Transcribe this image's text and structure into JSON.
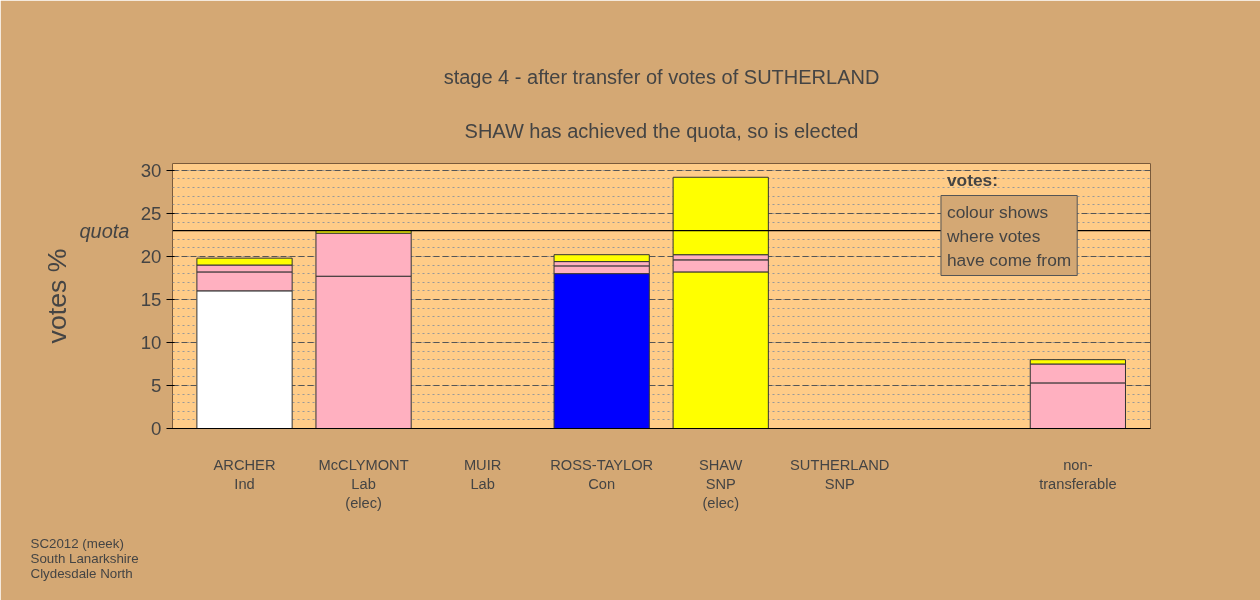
{
  "chart_data": {
    "type": "bar",
    "stacked": true,
    "title": "stage 4 - after transfer of votes of SUTHERLAND",
    "subtitle": "SHAW has achieved the quota, so is elected",
    "ylabel": "votes %",
    "categories": [
      "ARCHER\nInd",
      "McCLYMONT\nLab\n(elec)",
      "MUIR\nLab",
      "ROSS-TAYLOR\nCon",
      "SHAW\nSNP\n(elec)",
      "SUTHERLAND\nSNP",
      null,
      "non-\ntransferable"
    ],
    "series": [
      {
        "colors": [
          "#ffffff",
          "#ffb0c0",
          "#ff0000",
          "#0000ff",
          "#ffff00",
          "#ffff00",
          "#ffffff",
          "#ffb0c0"
        ],
        "values": [
          16.0,
          17.7,
          null,
          18.0,
          18.2,
          null,
          null,
          5.3
        ]
      },
      {
        "colors": [
          "#ffb0c0",
          "#ffb0c0",
          "#ffb0c0",
          "#ffb0c0",
          "#ffb0c0",
          "#ffb0c0",
          "#ffb0c0",
          "#ffb0c0"
        ],
        "values": [
          2.2,
          5.0,
          null,
          0.9,
          1.4,
          null,
          null,
          2.2
        ]
      },
      {
        "colors": [
          "#ffb0c0",
          "#ffb0c0",
          "#ffb0c0",
          "#ffb0c0",
          "#ffb0c0",
          "#ffb0c0",
          "#ffb0c0",
          "#ffb0c0"
        ],
        "values": [
          0.8,
          null,
          null,
          0.5,
          0.6,
          null,
          null,
          null
        ]
      },
      {
        "colors": [
          "#ffff00",
          "#ffff00",
          "#ffff00",
          "#ffff00",
          "#ffff00",
          "#ffff00",
          "#ffff00",
          "#ffff00"
        ],
        "values": [
          0.8,
          0.3,
          null,
          0.8,
          9.0,
          null,
          null,
          0.5
        ]
      }
    ],
    "ylim": [
      0,
      30.8
    ],
    "yticks": [
      0,
      5,
      10,
      15,
      20,
      25,
      30
    ],
    "grid": "y",
    "ref_lines": [
      {
        "axis": "y",
        "value": 23.0,
        "label": "quota",
        "color": "#000000"
      }
    ],
    "annotations": [
      "votes:",
      "colour shows\nwhere votes\nhave come from",
      "SC2012 (meek)\nSouth Lanarkshire\nClydesdale North"
    ]
  }
}
